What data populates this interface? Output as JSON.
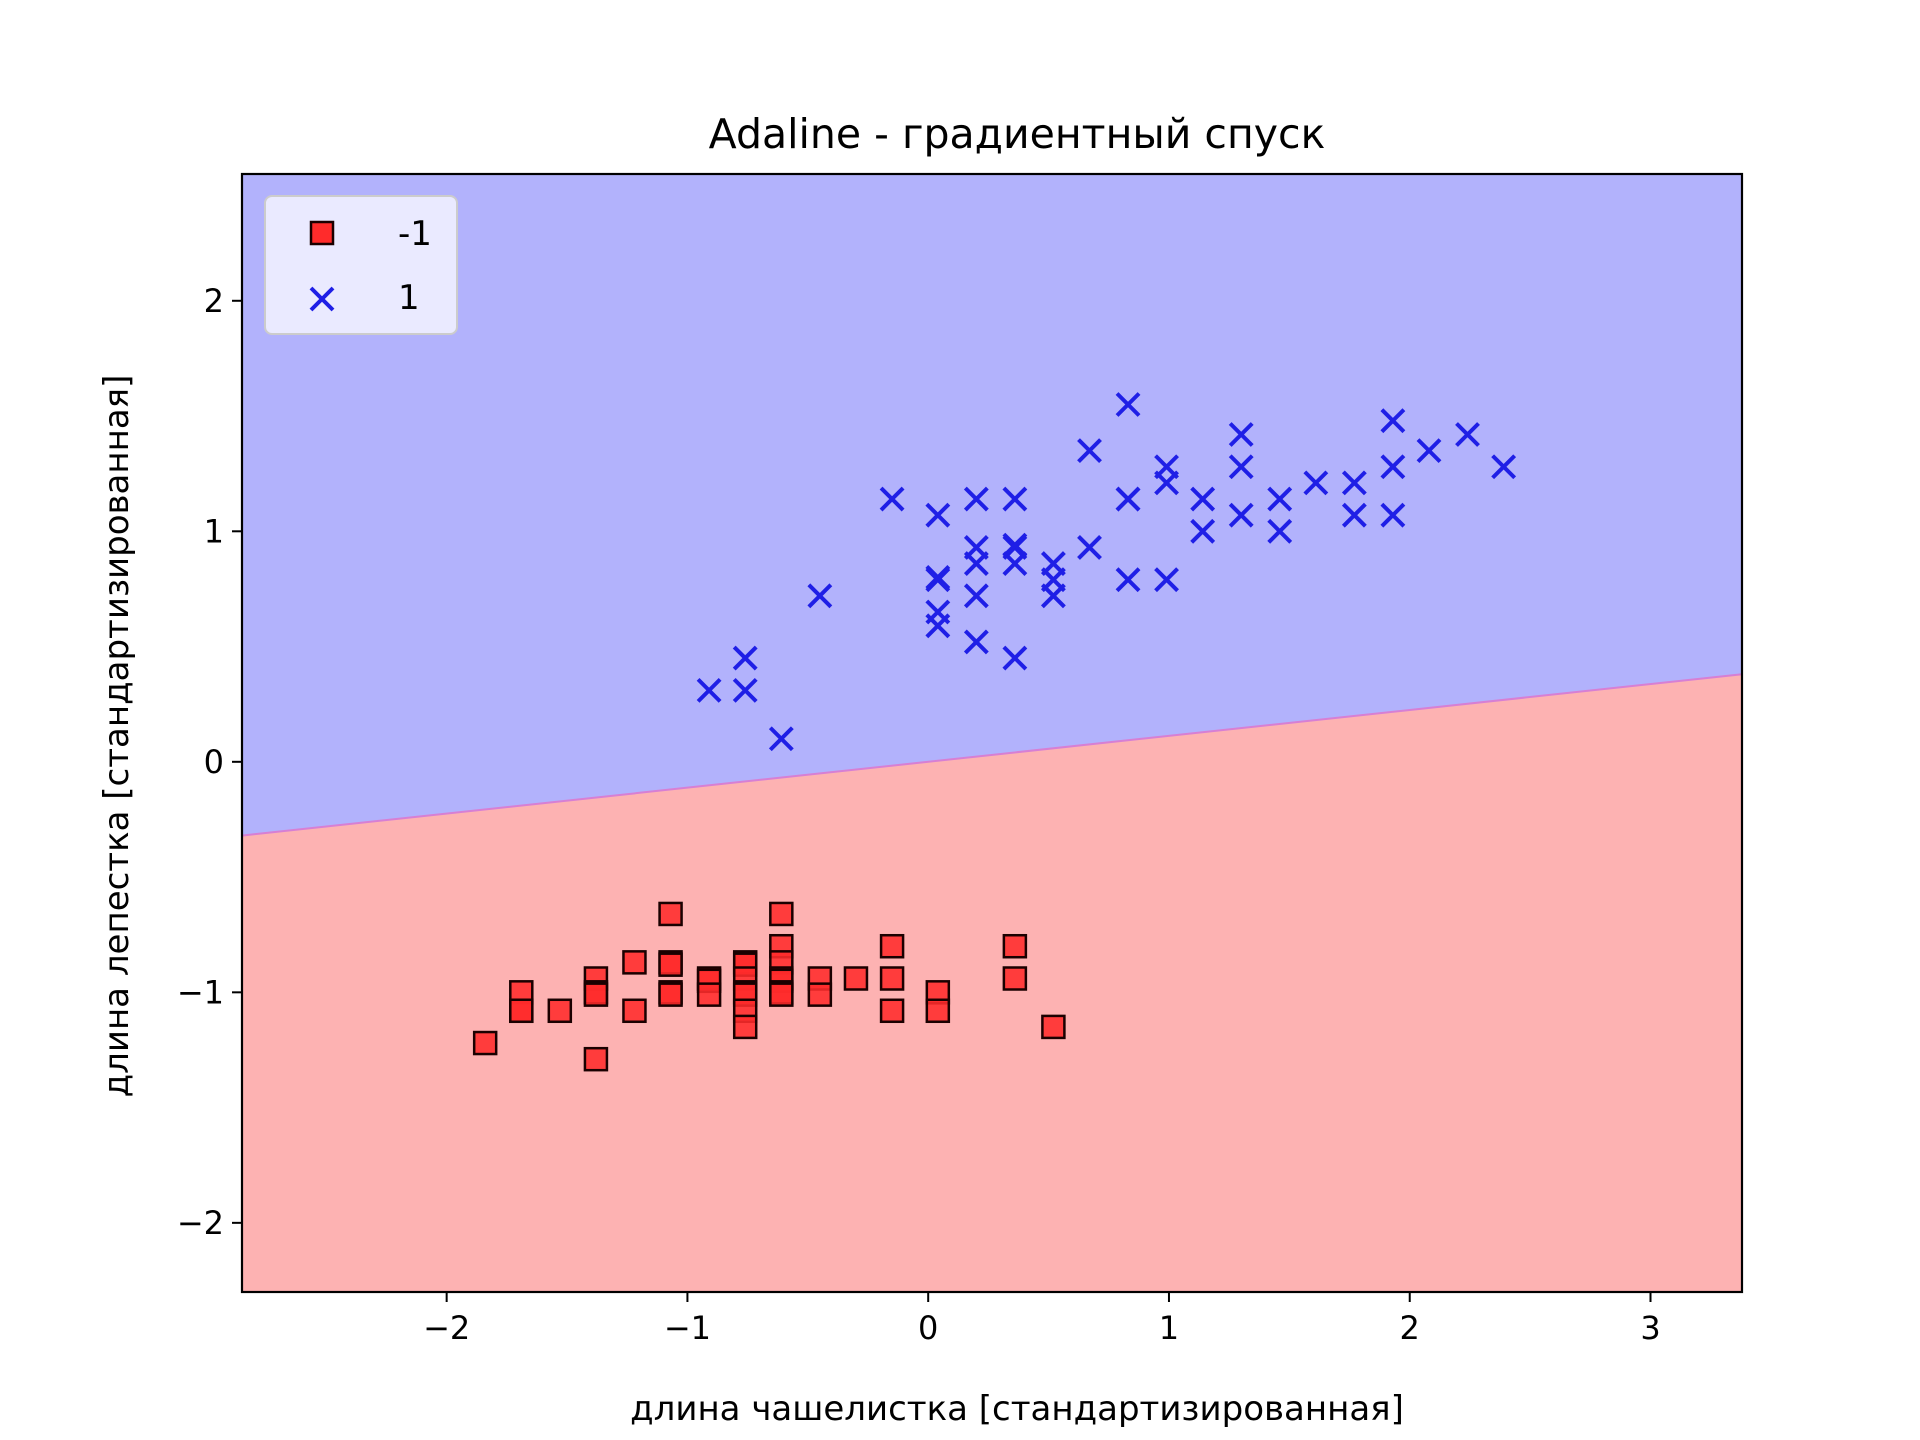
{
  "chart_data": {
    "type": "scatter",
    "title": "Adaline - градиентный спуск",
    "xlabel": "длина чашелистка [стандартизированная]",
    "ylabel": "длина лепестка [стандартизированная]",
    "xlim": [
      -2.85,
      3.38
    ],
    "ylim": [
      -2.3,
      2.55
    ],
    "x_ticks": [
      -2,
      -1,
      0,
      1,
      2,
      3
    ],
    "y_ticks": [
      -2,
      -1,
      0,
      1,
      2
    ],
    "x_tick_labels": [
      "−2",
      "−1",
      "0",
      "1",
      "2",
      "3"
    ],
    "y_tick_labels": [
      "−2",
      "−1",
      "0",
      "1",
      "2"
    ],
    "decision_boundary": {
      "x": [
        -2.85,
        3.38
      ],
      "y": [
        -0.32,
        0.38
      ]
    },
    "regions": [
      {
        "label": "1",
        "side": "above",
        "color": "#b2b2fc"
      },
      {
        "label": "-1",
        "side": "below",
        "color": "#fdb2b2"
      }
    ],
    "legend": {
      "position": "upper left",
      "entries": [
        "-1",
        "1"
      ]
    },
    "series": [
      {
        "name": "-1",
        "marker": "square",
        "color": "#ff2b2b",
        "edgecolor": "#1a0000",
        "points": [
          [
            -1.84,
            -1.22
          ],
          [
            -1.69,
            -1.0
          ],
          [
            -1.69,
            -1.08
          ],
          [
            -1.69,
            -1.08
          ],
          [
            -1.53,
            -1.08
          ],
          [
            -1.38,
            -0.94
          ],
          [
            -1.38,
            -1.0
          ],
          [
            -1.38,
            -1.01
          ],
          [
            -1.38,
            -1.29
          ],
          [
            -1.22,
            -0.87
          ],
          [
            -1.22,
            -1.08
          ],
          [
            -1.07,
            -0.66
          ],
          [
            -1.07,
            -0.87
          ],
          [
            -1.07,
            -0.88
          ],
          [
            -1.07,
            -1.0
          ],
          [
            -1.07,
            -1.01
          ],
          [
            -0.91,
            -0.94
          ],
          [
            -0.91,
            -0.95
          ],
          [
            -0.91,
            -1.01
          ],
          [
            -0.76,
            -0.87
          ],
          [
            -0.76,
            -0.88
          ],
          [
            -0.76,
            -0.94
          ],
          [
            -0.76,
            -1.0
          ],
          [
            -0.76,
            -1.01
          ],
          [
            -0.76,
            -1.08
          ],
          [
            -0.76,
            -1.15
          ],
          [
            -0.61,
            -0.66
          ],
          [
            -0.61,
            -0.8
          ],
          [
            -0.61,
            -0.87
          ],
          [
            -0.61,
            -0.94
          ],
          [
            -0.61,
            -0.95
          ],
          [
            -0.61,
            -1.0
          ],
          [
            -0.61,
            -1.01
          ],
          [
            -0.45,
            -0.94
          ],
          [
            -0.45,
            -1.01
          ],
          [
            -0.3,
            -0.94
          ],
          [
            -0.15,
            -0.8
          ],
          [
            -0.15,
            -0.94
          ],
          [
            -0.15,
            -1.08
          ],
          [
            0.04,
            -1.0
          ],
          [
            0.04,
            -1.08
          ],
          [
            0.36,
            -0.8
          ],
          [
            0.36,
            -0.94
          ],
          [
            0.52,
            -1.15
          ]
        ]
      },
      {
        "name": "1",
        "marker": "x",
        "color": "#1f1fe6",
        "points": [
          [
            -0.91,
            0.31
          ],
          [
            -0.76,
            0.31
          ],
          [
            -0.76,
            0.45
          ],
          [
            -0.61,
            0.1
          ],
          [
            -0.45,
            0.72
          ],
          [
            -0.15,
            1.14
          ],
          [
            0.04,
            0.59
          ],
          [
            0.04,
            0.65
          ],
          [
            0.04,
            0.8
          ],
          [
            0.04,
            0.79
          ],
          [
            0.04,
            1.07
          ],
          [
            0.2,
            0.52
          ],
          [
            0.2,
            0.72
          ],
          [
            0.2,
            0.86
          ],
          [
            0.2,
            0.93
          ],
          [
            0.2,
            1.14
          ],
          [
            0.36,
            0.45
          ],
          [
            0.36,
            0.86
          ],
          [
            0.36,
            0.93
          ],
          [
            0.36,
            0.94
          ],
          [
            0.36,
            1.14
          ],
          [
            0.52,
            0.72
          ],
          [
            0.52,
            0.79
          ],
          [
            0.52,
            0.86
          ],
          [
            0.67,
            0.93
          ],
          [
            0.67,
            1.35
          ],
          [
            0.83,
            0.79
          ],
          [
            0.83,
            1.14
          ],
          [
            0.83,
            1.14
          ],
          [
            0.83,
            1.55
          ],
          [
            0.99,
            0.79
          ],
          [
            0.99,
            1.21
          ],
          [
            0.99,
            1.28
          ],
          [
            1.14,
            1.0
          ],
          [
            1.14,
            1.14
          ],
          [
            1.3,
            1.07
          ],
          [
            1.3,
            1.28
          ],
          [
            1.3,
            1.42
          ],
          [
            1.46,
            1.0
          ],
          [
            1.46,
            1.14
          ],
          [
            1.61,
            1.21
          ],
          [
            1.77,
            1.07
          ],
          [
            1.77,
            1.21
          ],
          [
            1.93,
            1.07
          ],
          [
            1.93,
            1.28
          ],
          [
            1.93,
            1.48
          ],
          [
            2.08,
            1.35
          ],
          [
            2.24,
            1.42
          ],
          [
            2.39,
            1.28
          ]
        ]
      }
    ]
  }
}
